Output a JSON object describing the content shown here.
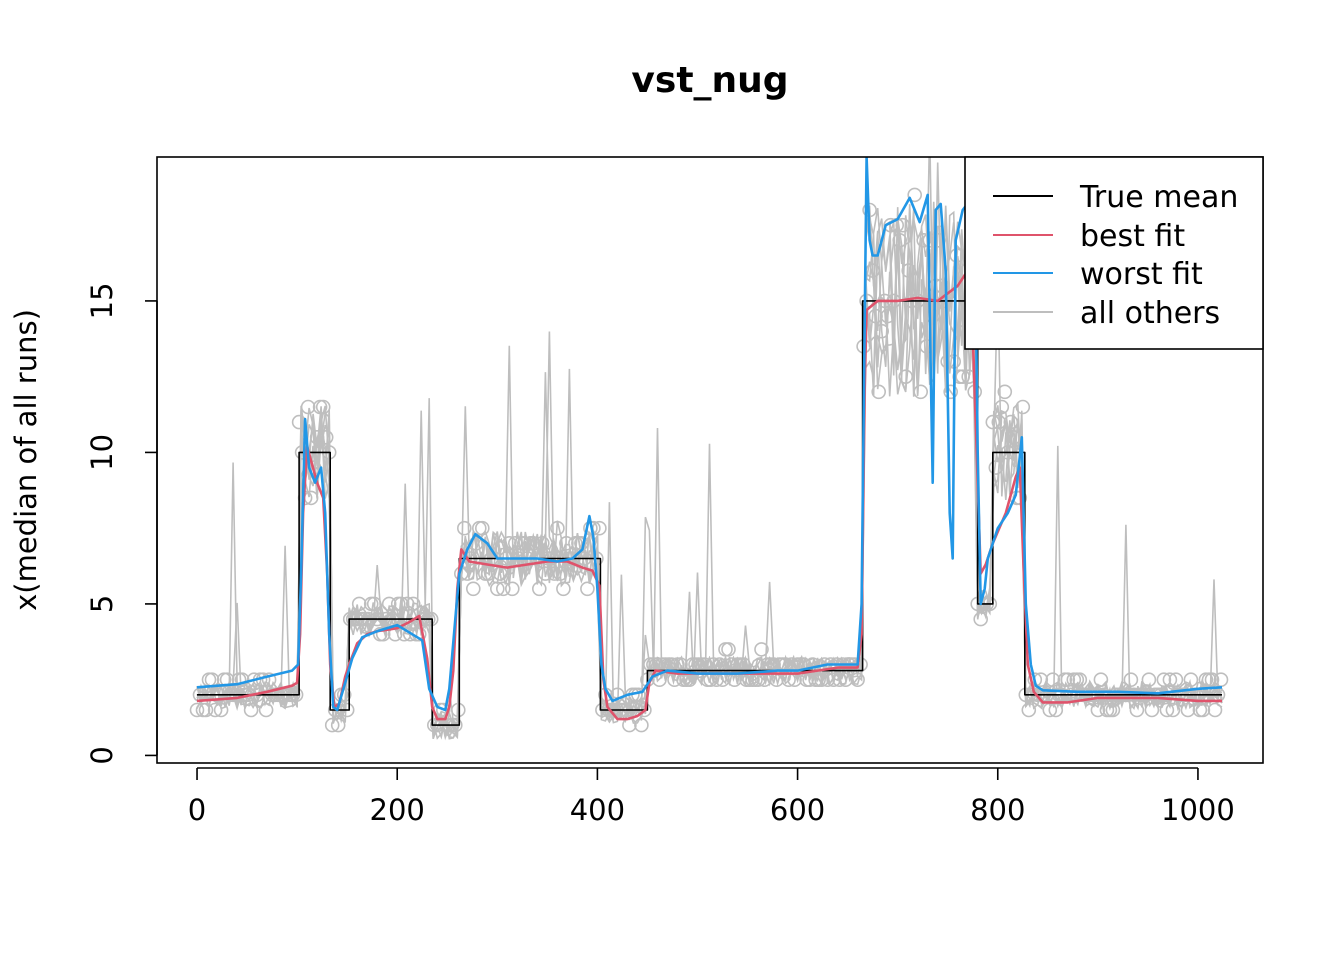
{
  "chart_data": {
    "type": "line",
    "title": "vst_nug",
    "xlabel": "",
    "ylabel": "x(median of all runs)",
    "xlim": [
      -40,
      1065
    ],
    "ylim": [
      -0.25,
      19.75
    ],
    "x_ticks": [
      0,
      200,
      400,
      600,
      800,
      1000
    ],
    "y_ticks": [
      0,
      5,
      10,
      15
    ],
    "legend": {
      "placement": "top-right",
      "entries": [
        {
          "label": "True mean",
          "color": "#000000"
        },
        {
          "label": "best fit",
          "color": "#DF536B"
        },
        {
          "label": "worst fit",
          "color": "#2297E6"
        },
        {
          "label": "all others",
          "color": "#BEBEBE"
        }
      ]
    },
    "series": [
      {
        "name": "True mean",
        "color": "#000000",
        "points": [
          [
            0,
            2
          ],
          [
            102,
            2
          ],
          [
            102,
            10
          ],
          [
            133,
            10
          ],
          [
            133,
            1.5
          ],
          [
            152,
            1.5
          ],
          [
            152,
            4.5
          ],
          [
            235,
            4.5
          ],
          [
            235,
            1
          ],
          [
            262,
            1
          ],
          [
            262,
            6.5
          ],
          [
            403,
            6.5
          ],
          [
            403,
            1.5
          ],
          [
            450,
            1.5
          ],
          [
            450,
            2.8
          ],
          [
            665,
            2.8
          ],
          [
            665,
            15
          ],
          [
            780,
            15
          ],
          [
            780,
            5
          ],
          [
            795,
            5
          ],
          [
            795,
            10
          ],
          [
            827,
            10
          ],
          [
            827,
            2
          ],
          [
            1024,
            2
          ]
        ]
      },
      {
        "name": "best fit",
        "color": "#DF536B",
        "points": [
          [
            0,
            1.8
          ],
          [
            40,
            1.9
          ],
          [
            70,
            2.1
          ],
          [
            95,
            2.3
          ],
          [
            100,
            2.4
          ],
          [
            103,
            4
          ],
          [
            106,
            8
          ],
          [
            110,
            10.2
          ],
          [
            115,
            9.6
          ],
          [
            120,
            9
          ],
          [
            126,
            8.5
          ],
          [
            130,
            6
          ],
          [
            133,
            3
          ],
          [
            137,
            1.6
          ],
          [
            142,
            1.7
          ],
          [
            148,
            2.6
          ],
          [
            152,
            3
          ],
          [
            160,
            3.7
          ],
          [
            170,
            4
          ],
          [
            180,
            4.1
          ],
          [
            200,
            4.2
          ],
          [
            212,
            4.4
          ],
          [
            222,
            4.6
          ],
          [
            230,
            3.2
          ],
          [
            235,
            1.6
          ],
          [
            240,
            1.2
          ],
          [
            248,
            1.2
          ],
          [
            252,
            1.6
          ],
          [
            256,
            2.8
          ],
          [
            260,
            5.5
          ],
          [
            264,
            6.8
          ],
          [
            272,
            6.4
          ],
          [
            290,
            6.3
          ],
          [
            310,
            6.2
          ],
          [
            330,
            6.3
          ],
          [
            350,
            6.4
          ],
          [
            370,
            6.4
          ],
          [
            385,
            6.2
          ],
          [
            395,
            6.1
          ],
          [
            402,
            5.6
          ],
          [
            406,
            2.5
          ],
          [
            410,
            1.6
          ],
          [
            420,
            1.2
          ],
          [
            430,
            1.2
          ],
          [
            440,
            1.3
          ],
          [
            448,
            1.5
          ],
          [
            452,
            2.4
          ],
          [
            458,
            2.8
          ],
          [
            480,
            2.7
          ],
          [
            520,
            2.7
          ],
          [
            560,
            2.7
          ],
          [
            600,
            2.7
          ],
          [
            640,
            2.9
          ],
          [
            660,
            2.9
          ],
          [
            664,
            4
          ],
          [
            667,
            12
          ],
          [
            669,
            14.7
          ],
          [
            680,
            15
          ],
          [
            700,
            15
          ],
          [
            720,
            15.1
          ],
          [
            740,
            15
          ],
          [
            760,
            15.5
          ],
          [
            772,
            16.1
          ],
          [
            776,
            13
          ],
          [
            779,
            10
          ],
          [
            783,
            6
          ],
          [
            788,
            6.3
          ],
          [
            795,
            7
          ],
          [
            808,
            8
          ],
          [
            818,
            9.2
          ],
          [
            822,
            9.5
          ],
          [
            826,
            6
          ],
          [
            830,
            3
          ],
          [
            836,
            2.1
          ],
          [
            845,
            1.75
          ],
          [
            870,
            1.75
          ],
          [
            900,
            1.9
          ],
          [
            960,
            1.9
          ],
          [
            1000,
            1.8
          ],
          [
            1024,
            1.8
          ]
        ]
      },
      {
        "name": "worst fit",
        "color": "#2297E6",
        "points": [
          [
            0,
            2.25
          ],
          [
            40,
            2.35
          ],
          [
            70,
            2.6
          ],
          [
            95,
            2.8
          ],
          [
            101,
            3
          ],
          [
            104,
            6
          ],
          [
            108,
            11.1
          ],
          [
            112,
            9.5
          ],
          [
            118,
            9
          ],
          [
            124,
            9.5
          ],
          [
            128,
            8
          ],
          [
            132,
            4
          ],
          [
            136,
            1.6
          ],
          [
            140,
            1.5
          ],
          [
            148,
            2.4
          ],
          [
            155,
            3.2
          ],
          [
            165,
            3.9
          ],
          [
            180,
            4.1
          ],
          [
            200,
            4.3
          ],
          [
            215,
            4
          ],
          [
            225,
            3.8
          ],
          [
            232,
            2.2
          ],
          [
            240,
            1.6
          ],
          [
            248,
            1.5
          ],
          [
            252,
            2.2
          ],
          [
            258,
            4.5
          ],
          [
            262,
            6
          ],
          [
            270,
            6.8
          ],
          [
            278,
            7.3
          ],
          [
            290,
            7
          ],
          [
            300,
            6.5
          ],
          [
            320,
            6.5
          ],
          [
            340,
            6.5
          ],
          [
            360,
            6.4
          ],
          [
            375,
            6.5
          ],
          [
            385,
            6.8
          ],
          [
            392,
            7.9
          ],
          [
            396,
            7.2
          ],
          [
            400,
            5.5
          ],
          [
            404,
            3
          ],
          [
            408,
            2.2
          ],
          [
            415,
            1.8
          ],
          [
            430,
            2
          ],
          [
            445,
            2.1
          ],
          [
            455,
            2.6
          ],
          [
            470,
            2.8
          ],
          [
            500,
            2.7
          ],
          [
            540,
            2.7
          ],
          [
            580,
            2.8
          ],
          [
            600,
            2.8
          ],
          [
            630,
            3
          ],
          [
            660,
            3
          ],
          [
            664,
            5
          ],
          [
            667,
            14
          ],
          [
            669,
            19.75
          ],
          [
            672,
            17
          ],
          [
            675,
            16.5
          ],
          [
            680,
            16.5
          ],
          [
            688,
            17.5
          ],
          [
            700,
            17.7
          ],
          [
            712,
            18.4
          ],
          [
            722,
            17.6
          ],
          [
            730,
            18.5
          ],
          [
            735,
            9
          ],
          [
            738,
            18
          ],
          [
            743,
            18.2
          ],
          [
            748,
            16
          ],
          [
            752,
            8
          ],
          [
            755,
            6.5
          ],
          [
            758,
            17
          ],
          [
            765,
            18
          ],
          [
            772,
            18.3
          ],
          [
            777,
            17.9
          ],
          [
            780,
            10
          ],
          [
            783,
            5
          ],
          [
            787,
            5.5
          ],
          [
            790,
            6.5
          ],
          [
            800,
            7.5
          ],
          [
            810,
            8
          ],
          [
            818,
            8.6
          ],
          [
            824,
            10.5
          ],
          [
            828,
            5
          ],
          [
            833,
            3
          ],
          [
            838,
            2.3
          ],
          [
            845,
            2.15
          ],
          [
            880,
            2.1
          ],
          [
            920,
            2.1
          ],
          [
            960,
            2.05
          ],
          [
            1000,
            2.2
          ],
          [
            1024,
            2.25
          ]
        ]
      }
    ]
  }
}
